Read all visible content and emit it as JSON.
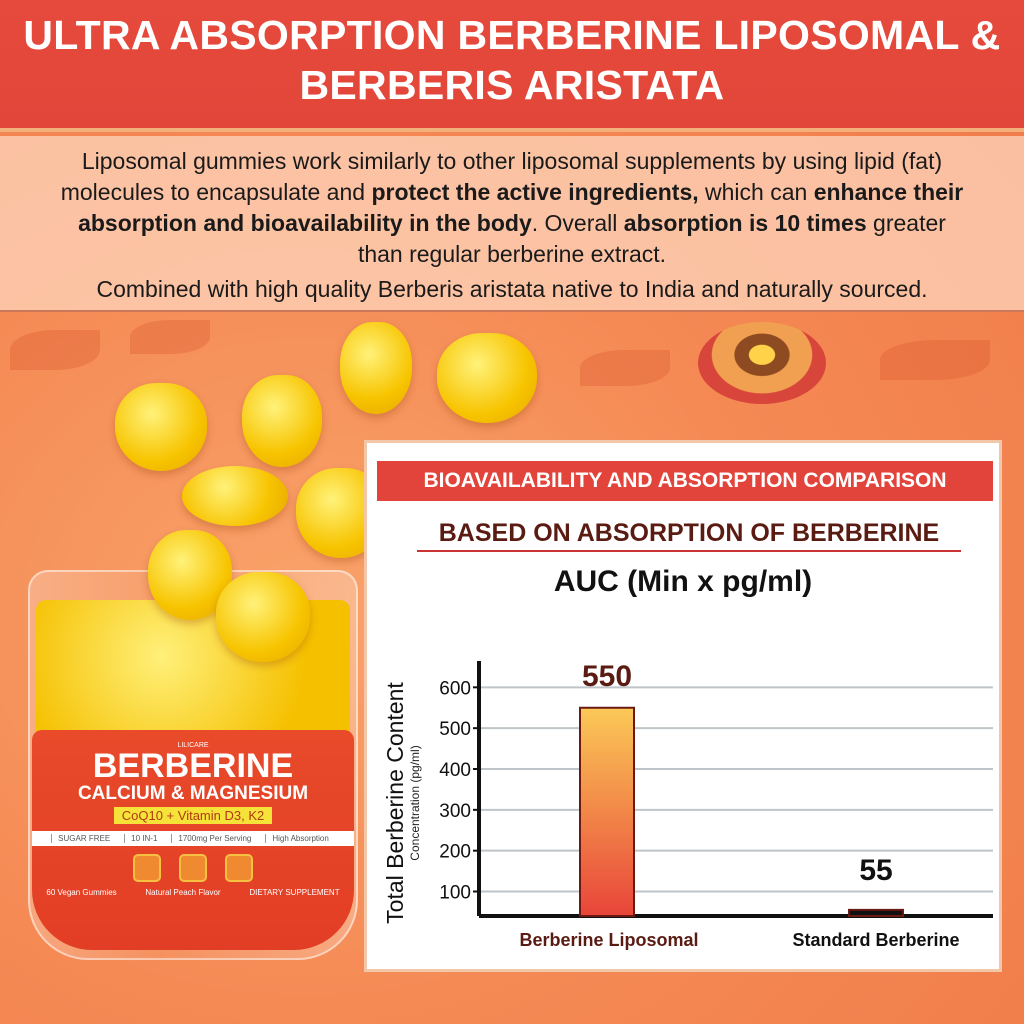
{
  "header": {
    "title_line1": "ULTRA ABSORPTION BERBERINE LIPOSOMAL &",
    "title_line2": "BERBERIS ARISTATA"
  },
  "intro": {
    "p1_a": "Liposomal gummies work similarly to other liposomal supplements by using lipid (fat) molecules to encapsulate and ",
    "p1_b": "protect the active ingredients,",
    "p1_c": " which can ",
    "p1_d": "enhance their absorption and bioavailability in the body",
    "p1_e": ". Overall ",
    "p1_f": "absorption is 10 times",
    "p1_g": " greater than regular berberine extract.",
    "p2": "Combined with high quality Berberis aristata native to India and naturally sourced."
  },
  "product": {
    "brand": "LILICARE",
    "name": "BERBERINE",
    "subtitle": "CALCIUM & MAGNESIUM",
    "pill": "CoQ10 + Vitamin D3, K2",
    "features": [
      "SUGAR FREE",
      "10 IN-1",
      "1700mg Per Serving",
      "High Absorption"
    ],
    "footer": [
      "60 Vegan Gummies",
      "Natural Peach Flavor",
      "DIETARY SUPPLEMENT"
    ]
  },
  "panel": {
    "heading": "BIOAVAILABILITY AND ABSORPTION COMPARISON",
    "subheading": "BASED ON ABSORPTION OF BERBERINE",
    "metric": "AUC (Min x pg/ml)"
  },
  "chart_data": {
    "type": "bar",
    "categories": [
      "Berberine Liposomal",
      "Standard Berberine"
    ],
    "values": [
      550,
      55
    ],
    "data_labels": [
      "550",
      "55"
    ],
    "ylabel": "Total Berberine Content",
    "ylabel_sub": "Concentration (pg/ml)",
    "yticks": [
      100,
      200,
      300,
      400,
      500,
      600
    ],
    "ylim": [
      40,
      640
    ],
    "grid": true,
    "colors": {
      "liposomal_top": "#fbc957",
      "liposomal_bottom": "#e8453a",
      "standard": "#111111",
      "label": "#5a1b12"
    }
  }
}
